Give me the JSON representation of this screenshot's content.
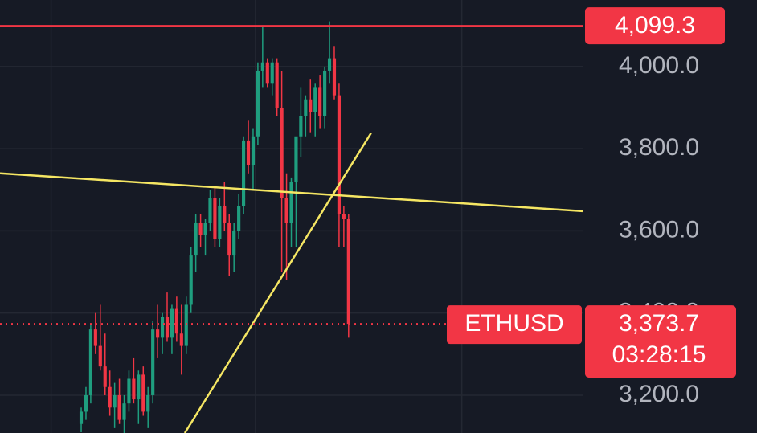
{
  "chart_data": {
    "type": "candlestick",
    "open": [
      3130,
      3160,
      3200,
      3360,
      3320,
      3270,
      3220,
      3170,
      3200,
      3140,
      3180,
      3240,
      3190,
      3250,
      3160,
      3200,
      3360,
      3340,
      3390,
      3340,
      3410,
      3350,
      3320,
      3420,
      3540,
      3620,
      3590,
      3620,
      3680,
      3580,
      3660,
      3620,
      3540,
      3600,
      3660,
      3820,
      3760,
      3830,
      3990,
      4010,
      3960,
      4010,
      3900,
      3680,
      3620,
      3720,
      3830,
      3880,
      3920,
      3890,
      3950,
      3880,
      3990,
      4020,
      3930,
      3640,
      3630
    ],
    "high": [
      3170,
      3220,
      3370,
      3400,
      3420,
      3350,
      3260,
      3230,
      3240,
      3200,
      3260,
      3290,
      3260,
      3270,
      3220,
      3380,
      3420,
      3400,
      3450,
      3420,
      3440,
      3420,
      3440,
      3560,
      3640,
      3640,
      3630,
      3700,
      3710,
      3680,
      3720,
      3640,
      3620,
      3690,
      3830,
      3870,
      3850,
      4010,
      4100,
      4020,
      4020,
      4020,
      3990,
      3740,
      3730,
      3820,
      3950,
      3930,
      3970,
      3960,
      3980,
      4000,
      4110,
      4050,
      3960,
      3660,
      3640
    ],
    "low": [
      3110,
      3140,
      3180,
      3300,
      3260,
      3200,
      3150,
      3120,
      3130,
      3100,
      3160,
      3180,
      3130,
      3150,
      3120,
      3180,
      3290,
      3300,
      3330,
      3300,
      3330,
      3250,
      3300,
      3400,
      3500,
      3560,
      3540,
      3600,
      3560,
      3560,
      3600,
      3490,
      3500,
      3580,
      3640,
      3740,
      3700,
      3810,
      3950,
      3950,
      3930,
      3880,
      3500,
      3480,
      3560,
      3560,
      3780,
      3830,
      3840,
      3830,
      3850,
      3850,
      3960,
      3920,
      3560,
      3560,
      3340
    ],
    "close": [
      3160,
      3200,
      3360,
      3320,
      3270,
      3220,
      3170,
      3200,
      3140,
      3180,
      3240,
      3190,
      3250,
      3160,
      3200,
      3360,
      3340,
      3390,
      3340,
      3410,
      3350,
      3320,
      3420,
      3540,
      3620,
      3590,
      3620,
      3680,
      3580,
      3660,
      3620,
      3540,
      3600,
      3660,
      3820,
      3760,
      3830,
      3990,
      4010,
      3960,
      4010,
      3900,
      3680,
      3620,
      3720,
      3830,
      3880,
      3920,
      3890,
      3950,
      3880,
      3990,
      4020,
      3930,
      3640,
      3630,
      3373.7
    ],
    "up_color": "#1f9e7f",
    "down_color": "#f23645",
    "ylim": [
      3108,
      4162
    ],
    "yticks": [
      {
        "value": 3200,
        "label": "3,200.0"
      },
      {
        "value": 3400,
        "label": "3,400.0"
      },
      {
        "value": 3600,
        "label": "3,600.0"
      },
      {
        "value": 3800,
        "label": "3,800.0"
      },
      {
        "value": 4000,
        "label": "4,000.0"
      }
    ],
    "xlim": [
      -17,
      105
    ],
    "xticks": [
      -6.3,
      36.5,
      79.7
    ],
    "grid": true,
    "price_lines": [
      {
        "value": 4099.3,
        "label": "4,099.3",
        "color": "#f23645"
      }
    ],
    "current_price": {
      "value": 3373.7,
      "label": "3,373.7",
      "symbol": "ETHUSD",
      "countdown": "03:28:15",
      "color": "#f23645"
    },
    "trendlines": [
      {
        "x": [
          -17,
          105
        ],
        "values": [
          3740,
          3648
        ],
        "color": "#f5e663"
      },
      {
        "x": [
          21.7,
          60.7
        ],
        "values": [
          3108,
          3838
        ],
        "color": "#f5e663"
      }
    ]
  }
}
